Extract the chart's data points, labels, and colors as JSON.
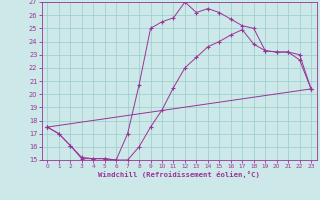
{
  "xlabel": "Windchill (Refroidissement éolien,°C)",
  "bg_color": "#cde8e8",
  "line_color": "#993399",
  "grid_color": "#99cccc",
  "xlim": [
    -0.5,
    23.5
  ],
  "ylim": [
    15,
    27
  ],
  "xticks": [
    0,
    1,
    2,
    3,
    4,
    5,
    6,
    7,
    8,
    9,
    10,
    11,
    12,
    13,
    14,
    15,
    16,
    17,
    18,
    19,
    20,
    21,
    22,
    23
  ],
  "yticks": [
    15,
    16,
    17,
    18,
    19,
    20,
    21,
    22,
    23,
    24,
    25,
    26,
    27
  ],
  "line1_x": [
    0,
    1,
    2,
    3,
    4,
    5,
    6,
    7,
    8,
    9,
    10,
    11,
    12,
    13,
    14,
    15,
    16,
    17,
    18,
    19,
    20,
    21,
    22,
    23
  ],
  "line1_y": [
    17.5,
    17.0,
    16.1,
    15.1,
    15.1,
    15.1,
    15.0,
    17.0,
    20.7,
    25.0,
    25.5,
    25.8,
    27.0,
    26.2,
    26.5,
    26.2,
    25.7,
    25.2,
    25.0,
    23.3,
    23.2,
    23.2,
    22.6,
    20.4
  ],
  "line2_x": [
    0,
    1,
    2,
    3,
    4,
    5,
    6,
    7,
    8,
    9,
    10,
    11,
    12,
    13,
    14,
    15,
    16,
    17,
    18,
    19,
    20,
    21,
    22,
    23
  ],
  "line2_y": [
    17.5,
    17.0,
    16.1,
    15.2,
    15.1,
    15.1,
    15.0,
    15.0,
    16.0,
    17.5,
    18.8,
    20.5,
    22.0,
    22.8,
    23.6,
    24.0,
    24.5,
    24.9,
    23.8,
    23.3,
    23.2,
    23.2,
    23.0,
    20.4
  ],
  "line3_x": [
    0,
    23
  ],
  "line3_y": [
    17.5,
    20.4
  ]
}
